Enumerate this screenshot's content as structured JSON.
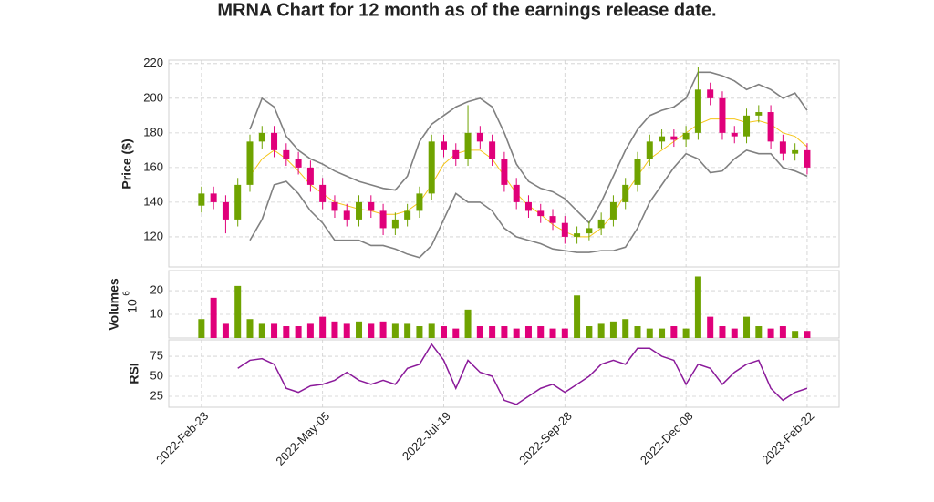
{
  "chart_data": {
    "type": "candlestick",
    "title": "MRNA Chart for 12 month as of the earnings release date.",
    "price_label": "Price ($)",
    "volume_label": "Volumes",
    "volume_scale_base": "10",
    "volume_scale_exponent": "6",
    "rsi_label": "RSI",
    "x": [
      0,
      5,
      10,
      15,
      20,
      25,
      30,
      35,
      40,
      45,
      50,
      55,
      60,
      65,
      70,
      75,
      80,
      85,
      90,
      95,
      100,
      105,
      110,
      115,
      120,
      125,
      130,
      135,
      140,
      145,
      150,
      155,
      160,
      165,
      170,
      175,
      180,
      185,
      190,
      195,
      200,
      205,
      210,
      215,
      220,
      225,
      230,
      235,
      240,
      245,
      250
    ],
    "open": [
      138,
      145,
      140,
      130,
      150,
      175,
      180,
      170,
      165,
      160,
      150,
      140,
      135,
      130,
      140,
      135,
      125,
      130,
      135,
      145,
      175,
      170,
      165,
      180,
      175,
      165,
      150,
      140,
      135,
      132,
      128,
      120,
      122,
      125,
      130,
      140,
      150,
      165,
      175,
      178,
      176,
      180,
      205,
      200,
      180,
      178,
      190,
      192,
      175,
      168,
      170
    ],
    "high": [
      149,
      149,
      144,
      154,
      179,
      184,
      184,
      174,
      169,
      164,
      154,
      144,
      139,
      144,
      144,
      139,
      134,
      139,
      149,
      179,
      179,
      174,
      196,
      184,
      179,
      169,
      154,
      144,
      139,
      136,
      132,
      126,
      129,
      134,
      144,
      154,
      169,
      179,
      182,
      182,
      184,
      218,
      209,
      204,
      184,
      194,
      196,
      196,
      179,
      174,
      174
    ],
    "low": [
      134,
      136,
      122,
      126,
      146,
      171,
      166,
      161,
      156,
      146,
      136,
      131,
      126,
      126,
      131,
      121,
      121,
      126,
      131,
      141,
      166,
      161,
      161,
      171,
      161,
      146,
      136,
      131,
      128,
      124,
      116,
      116,
      118,
      121,
      126,
      136,
      146,
      161,
      171,
      172,
      172,
      176,
      196,
      176,
      174,
      174,
      186,
      171,
      164,
      164,
      156
    ],
    "close": [
      145,
      140,
      130,
      150,
      175,
      180,
      170,
      165,
      160,
      150,
      140,
      135,
      130,
      140,
      135,
      125,
      130,
      135,
      145,
      175,
      170,
      165,
      180,
      175,
      165,
      150,
      140,
      135,
      132,
      128,
      120,
      122,
      125,
      130,
      140,
      150,
      165,
      175,
      178,
      176,
      180,
      205,
      200,
      180,
      178,
      190,
      192,
      175,
      168,
      170,
      160
    ],
    "volume": [
      8,
      17,
      6,
      22,
      8,
      6,
      6,
      5,
      5,
      6,
      9,
      7,
      6,
      7,
      6,
      7,
      6,
      6,
      5,
      6,
      5,
      4,
      12,
      5,
      5,
      5,
      4,
      5,
      5,
      4,
      4,
      18,
      5,
      6,
      7,
      8,
      5,
      4,
      4,
      5,
      4,
      26,
      9,
      5,
      4,
      9,
      5,
      4,
      5,
      3,
      3
    ],
    "ma": [
      null,
      null,
      null,
      null,
      155,
      165,
      170,
      165,
      158,
      150,
      145,
      140,
      138,
      136,
      135,
      133,
      133,
      135,
      140,
      150,
      162,
      168,
      170,
      170,
      165,
      155,
      145,
      138,
      133,
      127,
      123,
      120,
      120,
      125,
      133,
      145,
      155,
      165,
      170,
      175,
      180,
      185,
      188,
      188,
      188,
      186,
      187,
      185,
      180,
      178,
      172
    ],
    "upper": [
      null,
      null,
      null,
      null,
      182,
      200,
      195,
      178,
      170,
      165,
      162,
      158,
      155,
      152,
      150,
      148,
      147,
      155,
      175,
      185,
      190,
      195,
      198,
      200,
      195,
      180,
      162,
      152,
      148,
      146,
      142,
      135,
      128,
      140,
      155,
      170,
      182,
      190,
      193,
      195,
      200,
      215,
      215,
      213,
      210,
      205,
      208,
      205,
      200,
      203,
      193
    ],
    "lower": [
      null,
      null,
      null,
      null,
      118,
      130,
      150,
      152,
      145,
      135,
      128,
      118,
      118,
      118,
      115,
      115,
      113,
      110,
      108,
      115,
      130,
      145,
      140,
      140,
      135,
      125,
      120,
      118,
      116,
      113,
      112,
      111,
      111,
      112,
      112,
      114,
      125,
      140,
      150,
      160,
      168,
      165,
      157,
      158,
      165,
      170,
      168,
      168,
      160,
      158,
      155
    ],
    "rsi": [
      null,
      null,
      null,
      60,
      70,
      72,
      65,
      35,
      30,
      38,
      40,
      45,
      55,
      45,
      40,
      45,
      40,
      60,
      65,
      90,
      70,
      35,
      70,
      55,
      50,
      20,
      15,
      25,
      35,
      40,
      30,
      40,
      50,
      65,
      70,
      65,
      85,
      85,
      75,
      70,
      40,
      65,
      60,
      40,
      55,
      65,
      70,
      35,
      20,
      30,
      35
    ],
    "up_color": "#6fa300",
    "down_color": "#e0007a",
    "ma_color": "#f5c518",
    "band_color": "#808080",
    "rsi_color": "#8b1a9a",
    "xlim": [
      -13.5,
      263.2
    ],
    "xticks": [
      {
        "value": 0,
        "label": "2022-Feb-23"
      },
      {
        "value": 50,
        "label": "2022-May-05"
      },
      {
        "value": 100,
        "label": "2022-Jul-19"
      },
      {
        "value": 150,
        "label": "2022-Sep-28"
      },
      {
        "value": 200,
        "label": "2022-Dec-08"
      },
      {
        "value": 250,
        "label": "2023-Feb-22"
      }
    ],
    "ylim": [
      102.6,
      222
    ],
    "yticks": [
      120,
      140,
      160,
      180,
      200,
      220
    ],
    "volume_ylim": [
      0,
      28.5
    ],
    "volume_yticks": [
      10,
      20
    ],
    "rsi_ylim": [
      11.4,
      95.5
    ],
    "rsi_yticks": [
      25,
      50,
      75
    ],
    "grid": true
  }
}
